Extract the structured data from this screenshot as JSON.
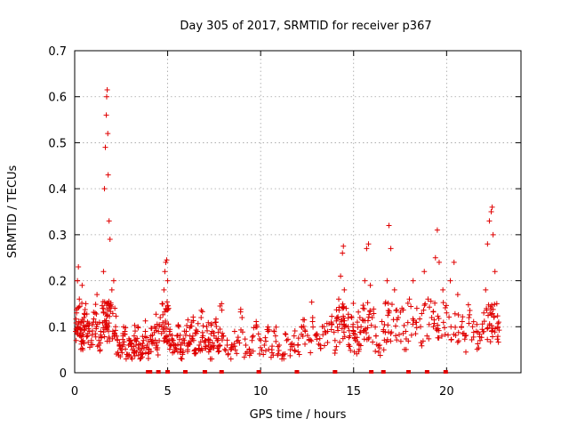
{
  "chart_data": {
    "type": "scatter",
    "title": "Day 305 of 2017, SRMTID for receiver p367",
    "xlabel": "GPS time / hours",
    "ylabel": "SRMTID / TECUs",
    "xlim": [
      0,
      24
    ],
    "ylim": [
      0,
      0.7
    ],
    "xticks": [
      0,
      5,
      10,
      15,
      20
    ],
    "yticks": [
      0,
      0.1,
      0.2,
      0.3,
      0.4,
      0.5,
      0.6,
      0.7
    ],
    "xtick_labels": [
      "0",
      "5",
      "10",
      "15",
      "20"
    ],
    "ytick_labels": [
      "0",
      "0.1",
      "0.2",
      "0.3",
      "0.4",
      "0.5",
      "0.6",
      "0.7"
    ],
    "grid": true,
    "marker": "+",
    "color": "#e00000",
    "series": [
      {
        "name": "SRMTID",
        "x": [
          0.05,
          0.1,
          0.15,
          0.2,
          0.25,
          0.3,
          0.35,
          0.4,
          0.45,
          0.5,
          0.55,
          0.6,
          0.7,
          0.8,
          0.9,
          1.0,
          1.1,
          1.2,
          1.3,
          1.4,
          1.5,
          1.55,
          1.6,
          1.65,
          1.7,
          1.72,
          1.75,
          1.78,
          1.8,
          1.85,
          1.9,
          2.0,
          2.1,
          2.2,
          2.3,
          2.4,
          2.5,
          2.6,
          2.7,
          2.8,
          2.9,
          3.0,
          3.1,
          3.2,
          3.3,
          3.4,
          3.5,
          3.6,
          3.7,
          3.8,
          3.9,
          4.0,
          4.1,
          4.2,
          4.3,
          4.4,
          4.5,
          4.6,
          4.7,
          4.8,
          4.85,
          4.9,
          4.95,
          5.0,
          5.05,
          5.1,
          5.2,
          5.3,
          5.4,
          5.5,
          5.6,
          5.7,
          5.8,
          5.9,
          6.0,
          6.1,
          6.2,
          6.3,
          6.4,
          6.5,
          6.6,
          6.7,
          6.8,
          6.9,
          7.0,
          7.1,
          7.2,
          7.3,
          7.4,
          7.5,
          7.6,
          7.7,
          7.8,
          7.9,
          8.0,
          8.2,
          8.4,
          8.6,
          8.8,
          9.0,
          9.2,
          9.4,
          9.6,
          9.8,
          10.0,
          10.2,
          10.4,
          10.6,
          10.8,
          11.0,
          11.2,
          11.4,
          11.6,
          11.8,
          12.0,
          12.2,
          12.4,
          12.6,
          12.8,
          13.0,
          13.2,
          13.4,
          13.6,
          13.8,
          14.0,
          14.1,
          14.2,
          14.3,
          14.4,
          14.45,
          14.5,
          14.6,
          14.7,
          14.8,
          14.9,
          15.0,
          15.1,
          15.2,
          15.3,
          15.4,
          15.5,
          15.6,
          15.7,
          15.8,
          15.9,
          16.0,
          16.2,
          16.4,
          16.6,
          16.7,
          16.8,
          16.9,
          17.0,
          17.2,
          17.4,
          17.6,
          17.8,
          18.0,
          18.2,
          18.4,
          18.6,
          18.8,
          19.0,
          19.2,
          19.4,
          19.5,
          19.6,
          19.8,
          20.0,
          20.2,
          20.4,
          20.6,
          20.8,
          21.0,
          21.2,
          21.4,
          21.6,
          21.8,
          22.0,
          22.1,
          22.2,
          22.3,
          22.4,
          22.45,
          22.5,
          22.6,
          22.7,
          22.8
        ],
        "y": [
          0.09,
          0.13,
          0.2,
          0.23,
          0.16,
          0.08,
          0.11,
          0.19,
          0.07,
          0.12,
          0.1,
          0.15,
          0.08,
          0.09,
          0.07,
          0.11,
          0.13,
          0.17,
          0.06,
          0.09,
          0.14,
          0.22,
          0.4,
          0.49,
          0.56,
          0.6,
          0.615,
          0.52,
          0.43,
          0.33,
          0.29,
          0.18,
          0.2,
          0.1,
          0.07,
          0.06,
          0.05,
          0.08,
          0.09,
          0.04,
          0.06,
          0.07,
          0.05,
          0.08,
          0.06,
          0.1,
          0.05,
          0.04,
          0.07,
          0.09,
          0.06,
          0.05,
          0.08,
          0.07,
          0.1,
          0.06,
          0.09,
          0.12,
          0.15,
          0.18,
          0.22,
          0.24,
          0.245,
          0.2,
          0.14,
          0.09,
          0.06,
          0.07,
          0.05,
          0.08,
          0.1,
          0.06,
          0.04,
          0.07,
          0.09,
          0.06,
          0.08,
          0.11,
          0.07,
          0.05,
          0.09,
          0.06,
          0.12,
          0.08,
          0.07,
          0.1,
          0.06,
          0.05,
          0.09,
          0.08,
          0.11,
          0.07,
          0.06,
          0.15,
          0.08,
          0.06,
          0.05,
          0.09,
          0.07,
          0.12,
          0.06,
          0.05,
          0.08,
          0.1,
          0.07,
          0.06,
          0.09,
          0.05,
          0.08,
          0.06,
          0.04,
          0.07,
          0.05,
          0.08,
          0.06,
          0.1,
          0.09,
          0.07,
          0.12,
          0.08,
          0.06,
          0.1,
          0.09,
          0.11,
          0.07,
          0.12,
          0.16,
          0.21,
          0.26,
          0.275,
          0.18,
          0.14,
          0.1,
          0.08,
          0.12,
          0.09,
          0.07,
          0.11,
          0.06,
          0.1,
          0.14,
          0.2,
          0.27,
          0.28,
          0.19,
          0.12,
          0.08,
          0.06,
          0.09,
          0.15,
          0.2,
          0.32,
          0.27,
          0.18,
          0.12,
          0.14,
          0.09,
          0.16,
          0.2,
          0.14,
          0.1,
          0.22,
          0.16,
          0.12,
          0.25,
          0.31,
          0.24,
          0.18,
          0.13,
          0.2,
          0.24,
          0.17,
          0.1,
          0.08,
          0.12,
          0.1,
          0.09,
          0.07,
          0.13,
          0.18,
          0.28,
          0.33,
          0.35,
          0.36,
          0.3,
          0.22,
          0.15,
          0.11
        ]
      }
    ],
    "bottom_markers_x": [
      3.95,
      4.05,
      4.5,
      5.0,
      5.95,
      7.0,
      7.9,
      9.9,
      11.95,
      14.0,
      15.95,
      16.6,
      17.95,
      18.95,
      19.95
    ]
  }
}
